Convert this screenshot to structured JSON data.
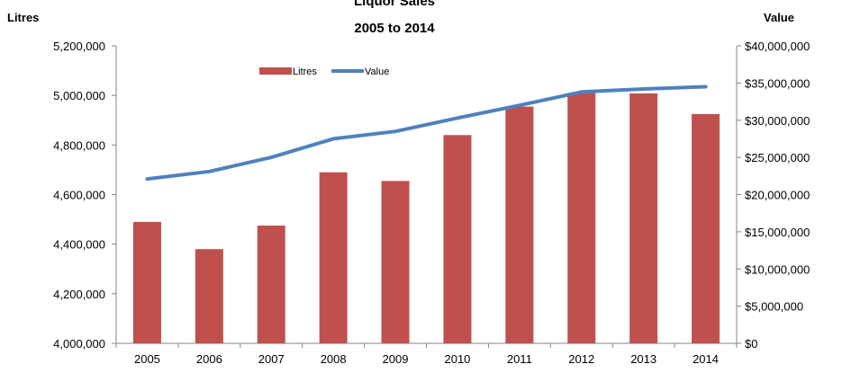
{
  "chart_data": {
    "type": "bar",
    "title": "Liquor Sales",
    "subtitle": "2005 to 2014",
    "ylabel_left": "Litres",
    "ylabel_right": "Value",
    "categories": [
      "2005",
      "2006",
      "2007",
      "2008",
      "2009",
      "2010",
      "2011",
      "2012",
      "2013",
      "2014"
    ],
    "series": [
      {
        "name": "Litres",
        "type": "bar",
        "axis": "left",
        "color": "#C0504D",
        "values": [
          4490000,
          4380000,
          4475000,
          4690000,
          4655000,
          4840000,
          4955000,
          5010000,
          5008000,
          4925000
        ]
      },
      {
        "name": "Value",
        "type": "line",
        "axis": "right",
        "color": "#4F81BD",
        "values": [
          22100000,
          23100000,
          25000000,
          27500000,
          28500000,
          30300000,
          32000000,
          33800000,
          34200000,
          34500000
        ]
      }
    ],
    "y_left": {
      "min": 4000000,
      "max": 5200000,
      "ticks": [
        4000000,
        4200000,
        4400000,
        4600000,
        4800000,
        5000000,
        5200000
      ],
      "tick_labels": [
        "4,000,000",
        "4,200,000",
        "4,400,000",
        "4,600,000",
        "4,800,000",
        "5,000,000",
        "5,200,000"
      ]
    },
    "y_right": {
      "min": 0,
      "max": 40000000,
      "ticks": [
        0,
        5000000,
        10000000,
        15000000,
        20000000,
        25000000,
        30000000,
        35000000,
        40000000
      ],
      "tick_labels": [
        "$0",
        "$5,000,000",
        "$10,000,000",
        "$15,000,000",
        "$20,000,000",
        "$25,000,000",
        "$30,000,000",
        "$35,000,000",
        "$40,000,000"
      ]
    },
    "grid": false,
    "legend": [
      "Litres",
      "Value"
    ],
    "legend_position": "top-left inside plot"
  }
}
